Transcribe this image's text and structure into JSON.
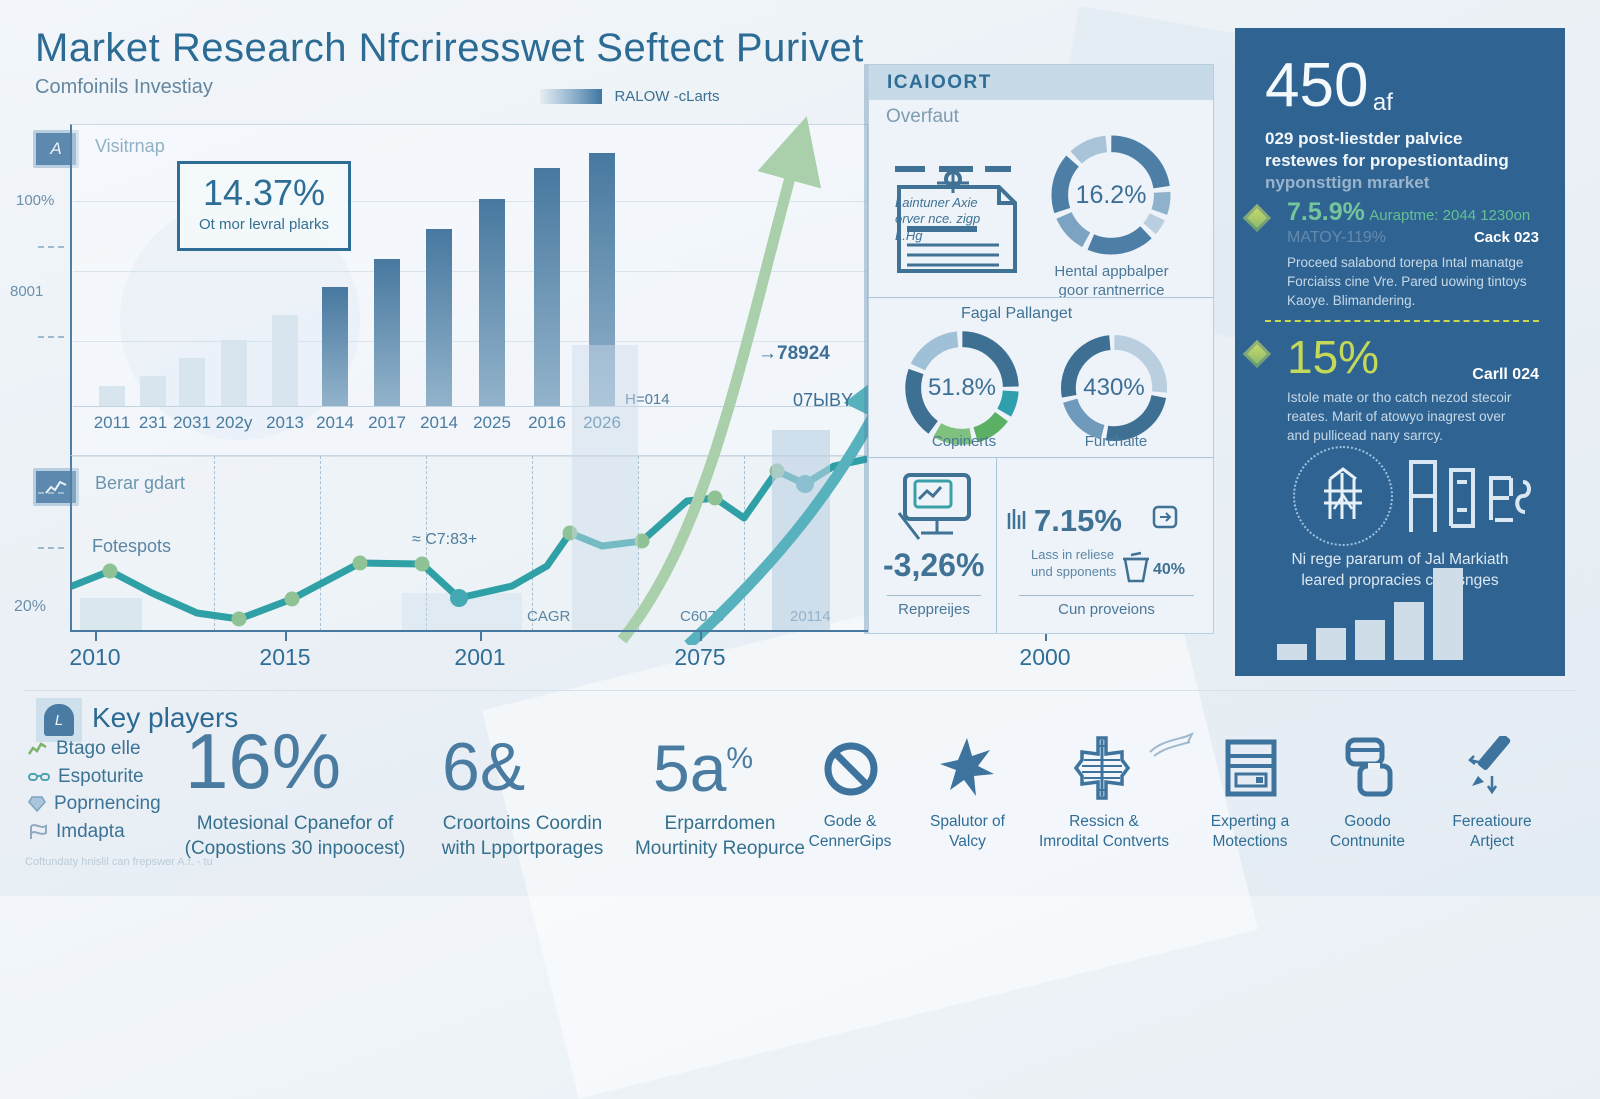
{
  "colors": {
    "accent": "#2e6d95",
    "dark_panel": "#2f6392",
    "teal_line": "#2fa0a5",
    "green_marker": "#8fc294",
    "lime_accent": "#c4d957",
    "bar_dark": "#47789f",
    "bar_light": "#d9e5ee"
  },
  "header": {
    "title": "Market Research Nfcriresswet Seftect Purivet",
    "subtitle": "Comfoinils Investiay",
    "legend_label": "RALOW -cLarts"
  },
  "bar_panel": {
    "badge": "A",
    "label": "Visitrnap",
    "callout_value": "14.37%",
    "callout_caption": "Ot mor levral plarks",
    "y_tick_top": "100%",
    "y_tick_mid": "8001"
  },
  "line_panel": {
    "label": "Berar gdart",
    "annotation": "Fotespots",
    "callout": "≈ C7:83+",
    "y_tick": "20%",
    "baseline_labels": [
      "CAGR",
      "C6073",
      "20114"
    ],
    "arrow_note_1": "→78924",
    "arrow_note_2": "07ЫBY"
  },
  "x_axis": {
    "labels": [
      "2010",
      "2015",
      "2001",
      "2075",
      "2000"
    ]
  },
  "report_panel": {
    "header": "ICAIOORT",
    "subtitle": "Overfaut",
    "doc_lines": [
      "Laintuner Axie",
      "orver nce. zigp",
      "L.Hg"
    ],
    "donut1_value": "16.2%",
    "donut1_caption": [
      "Hental appbalper",
      "goor rantnerrice"
    ],
    "section_title": "Fagal Pallanget",
    "donut2_value": "51.8%",
    "donut2_caption": "Copinerts",
    "donut3_value": "430%",
    "donut3_caption": "Furchaite",
    "stat1_value": "-3,26%",
    "stat1_caption": "Reppreijes",
    "stat2_value": "7.15%",
    "stat2_note": [
      "Lass in reliese",
      "und spponents"
    ],
    "stat2_pct": "40%",
    "stat2_caption": "Cun proveions"
  },
  "side_panel": {
    "headline": "450",
    "headline_suffix": "af",
    "intro": [
      "029 post-liestder palvice",
      "restewes for propestiontading",
      "nyponsttign mrarket"
    ],
    "item1": {
      "pct": "7.5.9%",
      "tag": "Auraptme: 2044 1230on",
      "ghost": "MATOY-119%",
      "ref": "Cack 023",
      "body": [
        "Proceed salabond torepa Intal manatge",
        "Forciaiss cine Vre. Pared uowing tintoys",
        "Kaoye. Blimandering."
      ]
    },
    "item2": {
      "pct": "15%",
      "ref": "Carll 024",
      "body": [
        "Istole mate or tho catch nezod stecoir",
        "reates. Marit of atowyo inagrest over",
        "and pullicead nany sarrcy."
      ]
    },
    "emblem_caption": [
      "Ni rege pararum of Jal Markiath",
      "leared propracies chalisnges"
    ]
  },
  "footer": {
    "section_title": "Key players",
    "players": [
      "Btago elle",
      "Espoturite",
      "Poprnencing",
      "Imdapta"
    ],
    "stats": [
      {
        "value": "16%",
        "caption": [
          "Motesional Cpanefor of",
          "(Copostions 30 inpoocest)"
        ]
      },
      {
        "value": "6&",
        "caption": [
          "Croortoins Coordin",
          "with Lpportporages"
        ]
      },
      {
        "value": "5a",
        "sup": "%",
        "caption": [
          "Erparrdomen",
          "Mourtinity Reopurce"
        ]
      }
    ],
    "icon_items": [
      {
        "icon": "no-symbol-icon",
        "label": [
          "Gode &",
          "CennerGips"
        ]
      },
      {
        "icon": "burst-star-icon",
        "label": [
          "Spalutor of",
          "Valcy"
        ]
      },
      {
        "icon": "ornate-cross-icon",
        "label": [
          "Ressicn &",
          "Imrodital Contverts"
        ]
      },
      {
        "icon": "server-icon",
        "label": [
          "Experting a",
          "Motections"
        ]
      },
      {
        "icon": "stacked-cards-icon",
        "label": [
          "Goodo",
          "Contnunite"
        ]
      },
      {
        "icon": "pen-arrow-icon",
        "label": [
          "Fereatioure",
          "Artject"
        ]
      }
    ],
    "fineprint": "Coftundaty hnislil can frepswer A.f. - tu"
  },
  "chart_data": [
    {
      "id": "main-bar",
      "type": "bar",
      "title": "Visitrnap",
      "categories": [
        "2011",
        "231",
        "2031",
        "202y",
        "2013",
        "2014",
        "2017",
        "2014",
        "2025",
        "2016",
        "2026"
      ],
      "values": [
        8,
        12,
        19,
        26,
        36,
        47,
        58,
        70,
        82,
        94,
        100
      ],
      "muted_count": 5,
      "ylim": [
        0,
        100
      ],
      "y_ticks": [
        "100%",
        "8001"
      ],
      "note": "H=014"
    },
    {
      "id": "trend-line",
      "type": "line",
      "title": "Berar gdart",
      "y_tick": "20%",
      "points": [
        [
          0,
          130
        ],
        [
          38,
          115
        ],
        [
          80,
          137
        ],
        [
          125,
          157
        ],
        [
          167,
          163
        ],
        [
          220,
          143
        ],
        [
          288,
          107
        ],
        [
          350,
          108
        ],
        [
          387,
          142
        ],
        [
          440,
          130
        ],
        [
          475,
          110
        ],
        [
          498,
          77
        ],
        [
          530,
          90
        ],
        [
          570,
          85
        ],
        [
          615,
          45
        ],
        [
          643,
          42
        ],
        [
          672,
          62
        ],
        [
          705,
          15
        ],
        [
          733,
          28
        ],
        [
          762,
          10
        ],
        [
          795,
          3
        ]
      ],
      "dots": [
        [
          38,
          115,
          "green"
        ],
        [
          167,
          163,
          "green"
        ],
        [
          220,
          143,
          "green"
        ],
        [
          288,
          107,
          "green"
        ],
        [
          350,
          108,
          "green"
        ],
        [
          387,
          142,
          "teal"
        ],
        [
          498,
          77,
          "green"
        ],
        [
          570,
          85,
          "green"
        ],
        [
          643,
          42,
          "green"
        ],
        [
          705,
          15,
          "green"
        ],
        [
          733,
          28,
          "teal"
        ]
      ]
    },
    {
      "id": "donut-overfaut",
      "type": "pie",
      "label": "16.2%",
      "segments": [
        24,
        8,
        6,
        20,
        12,
        18,
        12
      ],
      "colors": [
        "#4d7ea6",
        "#8fb2cc",
        "#b9cfe0",
        "#4d7ea6",
        "#7ca3c2",
        "#4d7ea6",
        "#a9c4d9"
      ]
    },
    {
      "id": "donut-copinerts",
      "type": "pie",
      "label": "51.8%",
      "segments": [
        26,
        9,
        12,
        13,
        22,
        18
      ],
      "colors": [
        "#3e7094",
        "#2f9fae",
        "#5cb063",
        "#7fc17f",
        "#3e7094",
        "#9fc0d6"
      ]
    },
    {
      "id": "donut-furchaite",
      "type": "pie",
      "label": "430%",
      "segments": [
        28,
        26,
        18,
        28
      ],
      "colors": [
        "#b9cfe0",
        "#3e7094",
        "#6f9abc",
        "#3e7094"
      ]
    },
    {
      "id": "side-mini-bar",
      "type": "bar",
      "values": [
        16,
        32,
        40,
        58,
        92
      ],
      "ylim": [
        0,
        100
      ]
    }
  ]
}
